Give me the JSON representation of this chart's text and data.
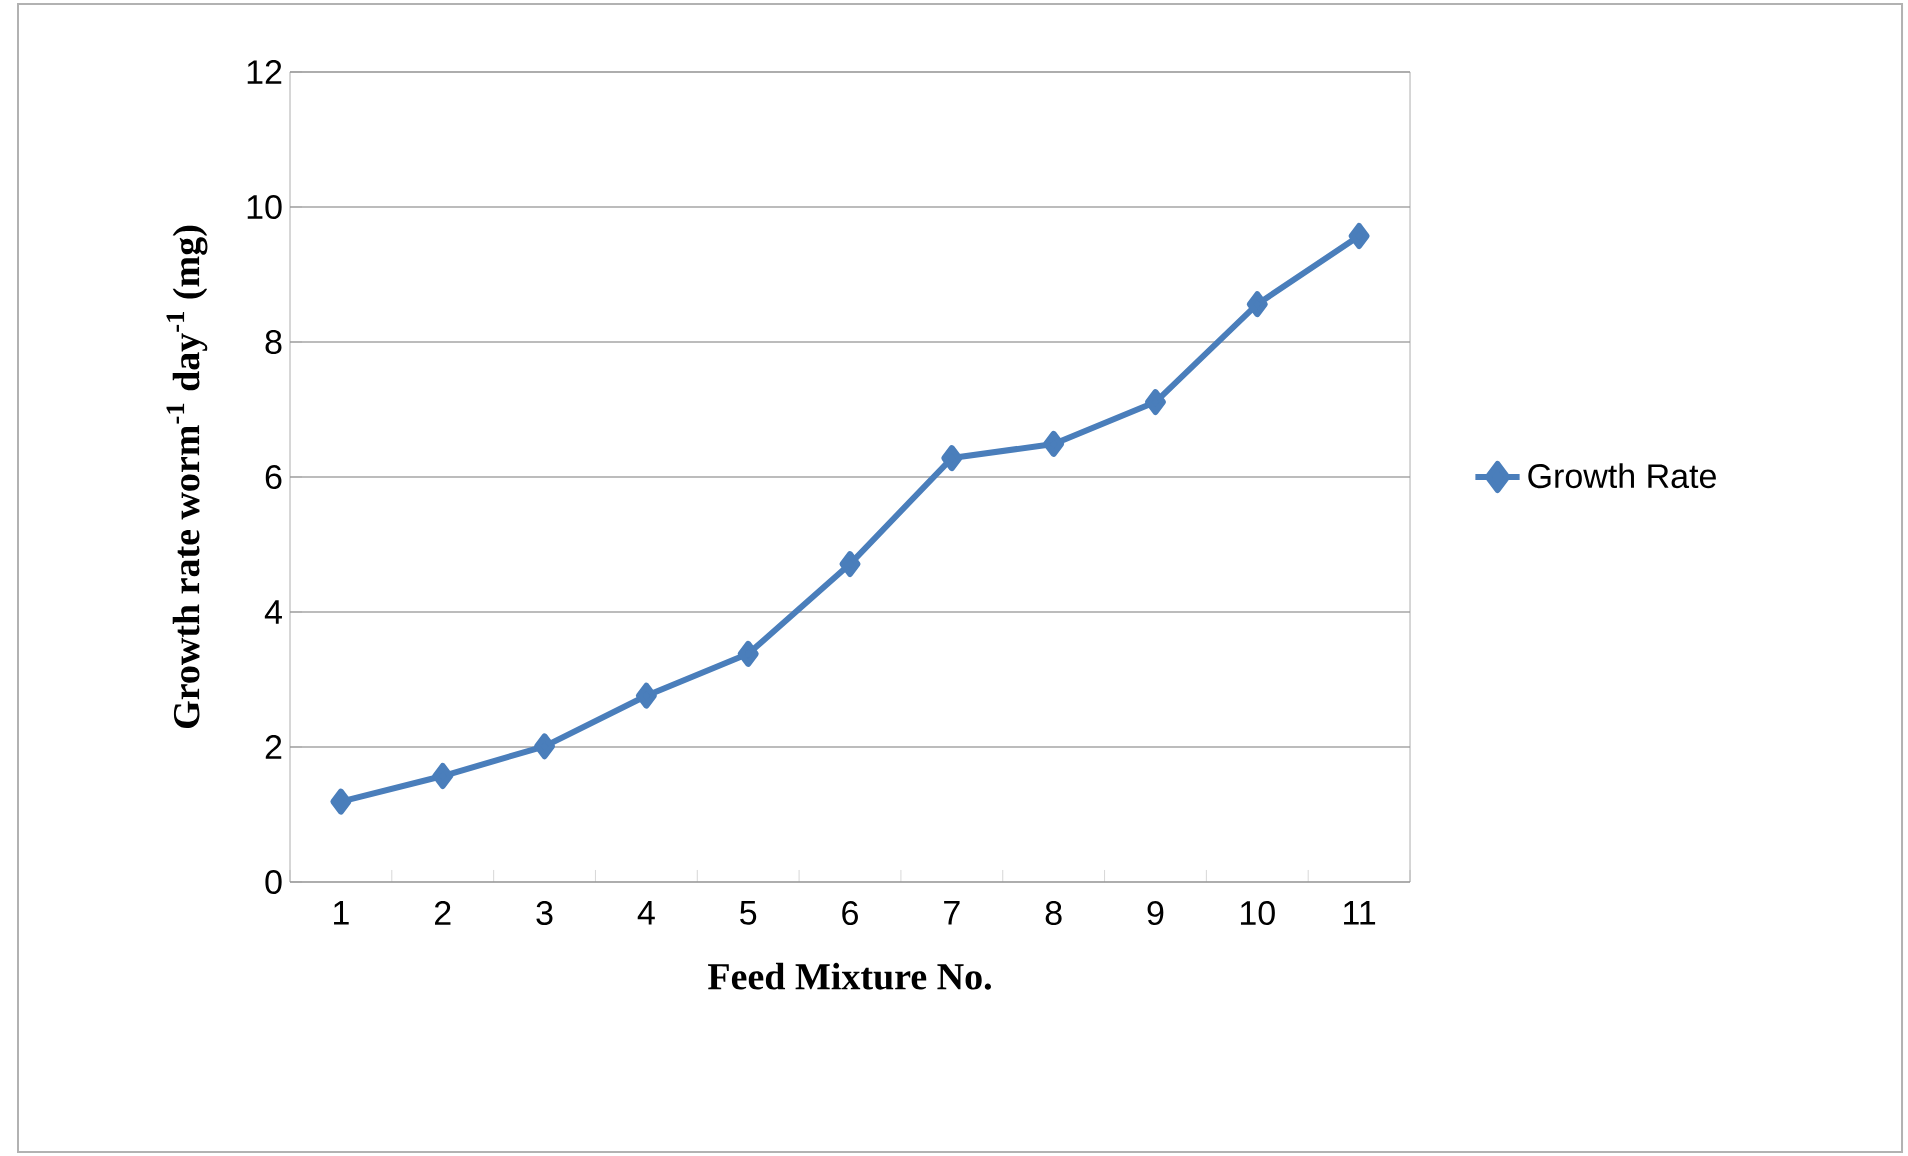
{
  "chart_data": {
    "type": "line",
    "xlabel": "Feed Mixture No.",
    "ylabel": "Growth rate worm$^{-1}$ day$^{-1}$ (mg)",
    "categories": [
      "1",
      "2",
      "3",
      "4",
      "5",
      "6",
      "7",
      "8",
      "9",
      "10",
      "11"
    ],
    "series": [
      {
        "name": "Growth Rate",
        "color": "#4a7ebb",
        "values": [
          1.19,
          1.57,
          2.01,
          2.76,
          3.38,
          4.71,
          6.28,
          6.49,
          7.11,
          8.56,
          9.57
        ]
      }
    ],
    "ylim": [
      0,
      12
    ],
    "yticks": [
      0,
      2,
      4,
      6,
      8,
      10,
      12
    ],
    "grid": "y",
    "legend": "right",
    "marker": "diamond",
    "line_style": "solid"
  }
}
